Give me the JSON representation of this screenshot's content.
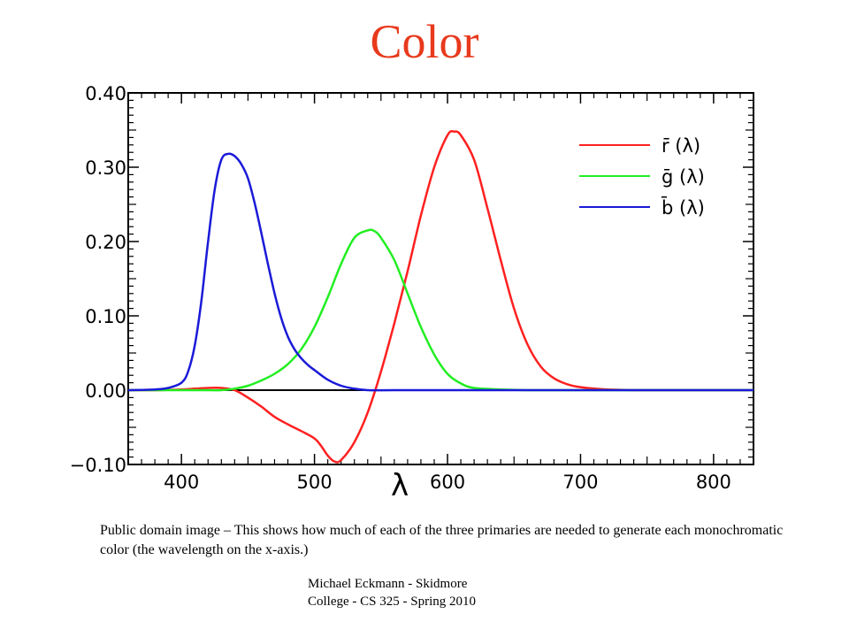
{
  "slide": {
    "title": "Color",
    "caption": "Public domain image – This shows how much of each of the three primaries are needed to generate each monochromatic color (the wavelength on the x-axis.)",
    "footer_line1": "Michael Eckmann - Skidmore",
    "footer_line2": "College - CS 325 - Spring 2010"
  },
  "colors": {
    "title": "#e8391c",
    "r": "#ff2020",
    "g": "#22ee22",
    "b": "#1a1ad8"
  },
  "chart_data": {
    "type": "line",
    "title": "",
    "xlabel": "λ",
    "ylabel": "",
    "xlim": [
      360,
      830
    ],
    "ylim": [
      -0.1,
      0.4
    ],
    "xticks": [
      400,
      500,
      600,
      700,
      800
    ],
    "xtick_labels": [
      "400",
      "500",
      "600",
      "700",
      "800"
    ],
    "yticks": [
      0.4,
      0.3,
      0.2,
      0.1,
      0.0,
      -0.1
    ],
    "ytick_labels": [
      "0.40",
      "0.30",
      "0.20",
      "0.10",
      "0.00",
      "−0.10"
    ],
    "grid": false,
    "legend_position": "top-right",
    "zero_line": true,
    "series": [
      {
        "name": "r̄ (λ)",
        "color": "#ff2020",
        "x": [
          360,
          380,
          400,
          410,
          420,
          430,
          440,
          450,
          460,
          470,
          480,
          490,
          500,
          505,
          510,
          515,
          520,
          530,
          540,
          550,
          560,
          570,
          580,
          590,
          600,
          605,
          610,
          620,
          630,
          640,
          650,
          660,
          670,
          680,
          690,
          700,
          720,
          750,
          800,
          830
        ],
        "y": [
          0.0,
          0.0,
          0.001,
          0.002,
          0.003,
          0.003,
          0.0,
          -0.01,
          -0.022,
          -0.036,
          -0.046,
          -0.055,
          -0.065,
          -0.075,
          -0.088,
          -0.096,
          -0.094,
          -0.07,
          -0.03,
          0.025,
          0.09,
          0.16,
          0.235,
          0.3,
          0.343,
          0.348,
          0.343,
          0.31,
          0.245,
          0.175,
          0.11,
          0.062,
          0.032,
          0.016,
          0.008,
          0.004,
          0.001,
          0.0,
          0.0,
          0.0
        ]
      },
      {
        "name": "ḡ (λ)",
        "color": "#22ee22",
        "x": [
          360,
          400,
          420,
          430,
          440,
          450,
          460,
          470,
          480,
          490,
          500,
          510,
          520,
          530,
          540,
          545,
          550,
          560,
          570,
          580,
          590,
          600,
          610,
          620,
          640,
          660,
          700,
          830
        ],
        "y": [
          0.0,
          0.0,
          0.0,
          0.0,
          0.002,
          0.006,
          0.013,
          0.022,
          0.035,
          0.055,
          0.085,
          0.125,
          0.17,
          0.205,
          0.215,
          0.214,
          0.205,
          0.175,
          0.13,
          0.085,
          0.048,
          0.022,
          0.009,
          0.003,
          0.001,
          0.0,
          0.0,
          0.0
        ]
      },
      {
        "name": "b̄ (λ)",
        "color": "#1a1ad8",
        "x": [
          360,
          380,
          390,
          400,
          405,
          410,
          415,
          420,
          425,
          430,
          435,
          440,
          445,
          450,
          455,
          460,
          465,
          470,
          475,
          480,
          485,
          490,
          495,
          500,
          510,
          520,
          530,
          540,
          560,
          600,
          830
        ],
        "y": [
          0.0,
          0.001,
          0.003,
          0.01,
          0.025,
          0.06,
          0.12,
          0.2,
          0.27,
          0.31,
          0.318,
          0.315,
          0.304,
          0.285,
          0.252,
          0.212,
          0.17,
          0.13,
          0.097,
          0.072,
          0.055,
          0.043,
          0.034,
          0.027,
          0.014,
          0.006,
          0.002,
          0.0,
          0.0,
          0.0,
          0.0
        ]
      }
    ]
  }
}
